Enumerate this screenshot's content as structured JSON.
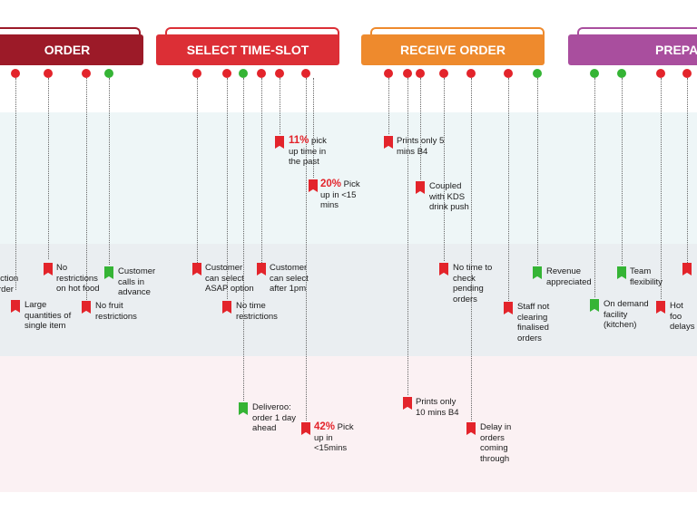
{
  "phases": {
    "order": "ORDER",
    "select_time_slot": "SELECT TIME-SLOT",
    "receive_order": "RECEIVE ORDER",
    "prepare": "PREPA"
  },
  "colors": {
    "order": "#9c1a28",
    "select_time_slot": "#dc2f36",
    "receive_order": "#ee8a2d",
    "prepare": "#a94e9e",
    "pain_point": "#e3242b",
    "positive": "#35b435"
  },
  "notes": {
    "restriction_order": "iction\nrder",
    "large_quantities": "Large\nquantities of\nsingle item",
    "no_restrictions_hot": "No\nrestrictions\non hot food",
    "no_fruit": "No fruit\nrestrictions",
    "calls_advance": "Customer\ncalls in\nadvance",
    "asap_option": "Customer\ncan select\nASAP option",
    "no_time_restrictions": "No time\nrestrictions",
    "after_1pm": "Customer\ncan select\nafter 1pm",
    "past_pct": "11%",
    "past_text": " pick\nup time in\nthe past",
    "under15_pct": "20%",
    "under15_text": " Pick\nup in <15\nmins",
    "deliveroo": "Deliveroo:\norder 1 day\nahead",
    "under15b_pct": "42%",
    "under15b_text": " Pick\nup in\n<15mins",
    "prints_5": "Prints only 5\nmins B4",
    "kds": "Coupled\nwith KDS\ndrink push",
    "prints_10": "Prints only\n10 mins B4",
    "no_time_check": "No time to\ncheck\npending\norders",
    "delay": "Delay in\norders\ncoming\nthrough",
    "staff_not_clearing": "Staff not\nclearing\nfinalised\norders",
    "revenue": "Revenue\nappreciated",
    "on_demand": "On demand\nfacility\n(kitchen)",
    "team_flex": "Team\nflexibility",
    "hot_food_delays": "Hot foo\ndelays"
  }
}
